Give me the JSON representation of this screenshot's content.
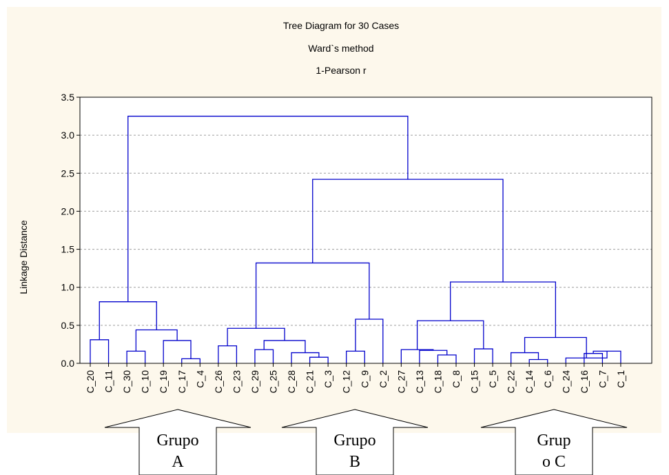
{
  "colors": {
    "panel_bg": "#fdf8ec",
    "plot_bg": "#ffffff",
    "tree_line": "#0000cc",
    "grid": "#9e9e9e",
    "arrow_fill": "#ffffff",
    "arrow_stroke": "#000000"
  },
  "chart_data": {
    "type": "dendrogram",
    "title": "Tree Diagram for 30 Cases",
    "subtitle": "Ward`s method",
    "subtitle2": "1-Pearson r",
    "ylabel": "Linkage Distance",
    "xlabel": "",
    "ylim": [
      0,
      3.5
    ],
    "yticks": [
      "0.0",
      "0.5",
      "1.0",
      "1.5",
      "2.0",
      "2.5",
      "3.0",
      "3.5"
    ],
    "grid": true,
    "leaves": [
      "C_20",
      "C_11",
      "C_30",
      "C_10",
      "C_19",
      "C_17",
      "C_4",
      "C_26",
      "C_23",
      "C_29",
      "C_25",
      "C_28",
      "C_21",
      "C_3",
      "C_12",
      "C_9",
      "C_2",
      "C_27",
      "C_13",
      "C_18",
      "C_8",
      "C_15",
      "C_5",
      "C_22",
      "C_14",
      "C_6",
      "C_24",
      "C_16",
      "C_7",
      "C_1"
    ],
    "merges": [
      {
        "a": "C_20",
        "b": "C_11",
        "height": 0.31
      },
      {
        "a": "C_30",
        "b": "C_10",
        "height": 0.16
      },
      {
        "a": "C_17",
        "b": "C_4",
        "height": 0.06
      },
      {
        "a": 2,
        "b": "C_19",
        "height": 0.3
      },
      {
        "a": 1,
        "b": 3,
        "height": 0.44
      },
      {
        "a": 0,
        "b": 4,
        "height": 0.81
      },
      {
        "a": "C_21",
        "b": "C_3",
        "height": 0.08
      },
      {
        "a": "C_28",
        "b": 6,
        "height": 0.14
      },
      {
        "a": "C_29",
        "b": "C_25",
        "height": 0.18
      },
      {
        "a": 8,
        "b": 7,
        "height": 0.3
      },
      {
        "a": "C_26",
        "b": "C_23",
        "height": 0.23
      },
      {
        "a": 10,
        "b": 9,
        "height": 0.46
      },
      {
        "a": "C_12",
        "b": "C_9",
        "height": 0.16
      },
      {
        "a": 12,
        "b": "C_2",
        "height": 0.58
      },
      {
        "a": 11,
        "b": 13,
        "height": 1.32
      },
      {
        "a": "C_18",
        "b": "C_8",
        "height": 0.11
      },
      {
        "a": "C_13",
        "b": 15,
        "height": 0.17
      },
      {
        "a": "C_27",
        "b": 16,
        "height": 0.18
      },
      {
        "a": "C_15",
        "b": "C_5",
        "height": 0.19
      },
      {
        "a": 17,
        "b": 18,
        "height": 0.56
      },
      {
        "a": "C_14",
        "b": "C_6",
        "height": 0.05
      },
      {
        "a": "C_22",
        "b": 20,
        "height": 0.14
      },
      {
        "a": "C_16",
        "b": "C_7",
        "height": 0.13
      },
      {
        "a": 22,
        "b": "C_1",
        "height": 0.16
      },
      {
        "a": "C_24",
        "b": 23,
        "height": 0.07
      },
      {
        "a": 21,
        "b": 24,
        "height": 0.34
      },
      {
        "a": 19,
        "b": 25,
        "height": 1.07
      },
      {
        "a": 14,
        "b": 26,
        "height": 2.42
      },
      {
        "a": 5,
        "b": 27,
        "height": 3.25
      }
    ]
  },
  "annotations": [
    {
      "line1": "Grupo",
      "line2": "A"
    },
    {
      "line1": "Grupo",
      "line2": "B"
    },
    {
      "line1": "Grup",
      "line2": "o C"
    }
  ]
}
